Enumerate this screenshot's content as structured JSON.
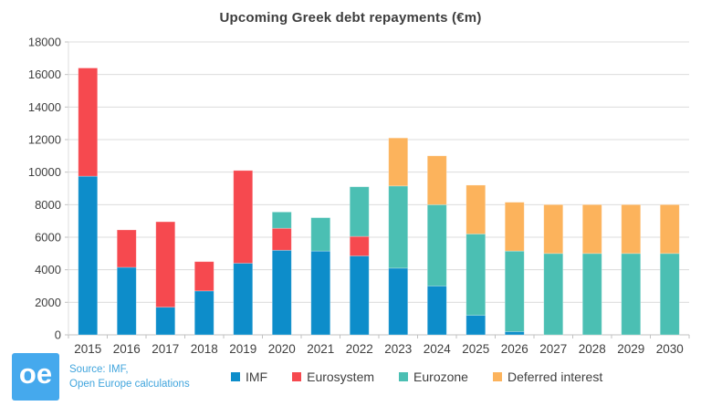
{
  "chart_data": {
    "type": "bar",
    "stacked": true,
    "title": "Upcoming Greek debt repayments (€m)",
    "categories": [
      "2015",
      "2016",
      "2017",
      "2018",
      "2019",
      "2020",
      "2021",
      "2022",
      "2023",
      "2024",
      "2025",
      "2026",
      "2027",
      "2028",
      "2029",
      "2030"
    ],
    "series": [
      {
        "name": "IMF",
        "color": "#0d8dca",
        "values": [
          9750,
          4150,
          1700,
          2700,
          4400,
          5200,
          5150,
          4850,
          4100,
          3000,
          1200,
          200,
          0,
          0,
          0,
          0
        ]
      },
      {
        "name": "Eurosystem",
        "color": "#f6494f",
        "values": [
          6650,
          2300,
          5250,
          1800,
          5700,
          1350,
          0,
          1200,
          0,
          0,
          0,
          0,
          0,
          0,
          0,
          0
        ]
      },
      {
        "name": "Eurozone",
        "color": "#4bbfb3",
        "values": [
          0,
          0,
          0,
          0,
          0,
          1000,
          2050,
          3050,
          5050,
          5000,
          5000,
          4950,
          5000,
          5000,
          5000,
          5000
        ]
      },
      {
        "name": "Deferred interest",
        "color": "#fcb35c",
        "values": [
          0,
          0,
          0,
          0,
          0,
          0,
          0,
          0,
          2950,
          3000,
          3000,
          3000,
          3000,
          3000,
          3000,
          3000
        ]
      }
    ],
    "ylim": [
      0,
      18000
    ],
    "ytick_step": 2000,
    "ytick_labels": [
      "0",
      "2000",
      "4000",
      "6000",
      "8000",
      "10000",
      "12000",
      "14000",
      "16000",
      "18000"
    ],
    "grid": true,
    "legend_position": "bottom",
    "colors": {
      "grid": "#dcdcdc",
      "axis": "#c2c2c2",
      "tick_text": "#3f3f3f"
    }
  },
  "footer": {
    "logo_text": "oe",
    "logo_color": "#45a9ed",
    "source_line1": "Source: IMF,",
    "source_line2": "Open Europe calculations",
    "source_color": "#41a5dd"
  }
}
